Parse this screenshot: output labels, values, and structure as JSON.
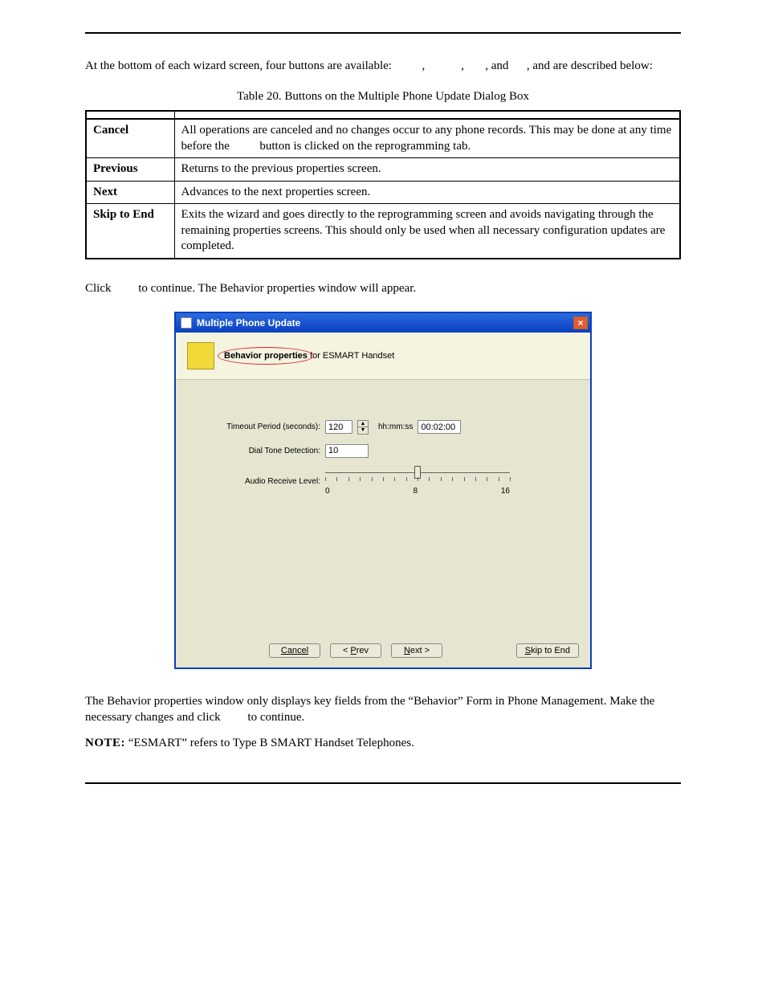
{
  "intro": {
    "p1_a": "At the bottom of each wizard screen, four buttons are available: ",
    "p1_b": ", ",
    "p1_c": ", ",
    "p1_d": ", and ",
    "p1_e": ", and are described below:"
  },
  "table_caption": "Table 20.  Buttons on the Multiple Phone Update Dialog Box",
  "table_header": {
    "btn": "",
    "desc": ""
  },
  "rows": [
    {
      "btn": "Cancel",
      "desc_a": "All operations are canceled and no changes occur to any phone records.  This may be done at any time before the ",
      "desc_b": " button is clicked on the reprogramming tab."
    },
    {
      "btn": "Previous",
      "desc": "Returns to the previous properties screen."
    },
    {
      "btn": "Next",
      "desc": "Advances to the next properties screen."
    },
    {
      "btn": "Skip to End",
      "desc": "Exits the wizard and goes directly to the reprogramming screen and avoids navigating through the remaining properties screens.  This should only be used when all necessary configuration updates are completed."
    }
  ],
  "click_line": {
    "a": "Click ",
    "b": " to continue.  The Behavior properties window will appear."
  },
  "dialog": {
    "title": "Multiple Phone Update",
    "header_bold": "Behavior properties ",
    "header_rest": "for ESMART Handset",
    "form": {
      "timeout_label": "Timeout Period (seconds):",
      "timeout_value": "120",
      "hhmmss_label": "hh:mm:ss",
      "hhmmss_value": "00:02:00",
      "dialtone_label": "Dial Tone Detection:",
      "dialtone_value": "10",
      "audio_label": "Audio Receive Level:",
      "slider": {
        "min": 0,
        "mid": 8,
        "max": 16,
        "value": 8,
        "ticks": 17,
        "track_width": 230
      }
    },
    "buttons": {
      "cancel": "Cancel",
      "prev": "< Prev",
      "next": "Next >",
      "skip": "Skip to End"
    }
  },
  "behavior_para": {
    "a": "The Behavior properties window only displays key fields from the “Behavior” Form in Phone Management.  Make the necessary changes and click ",
    "b": " to continue."
  },
  "note": {
    "label": "NOTE:",
    "text": "  “ESMART” refers to Type B SMART Handset Telephones."
  },
  "colors": {
    "page_bg": "#ffffff",
    "rule": "#000000",
    "dialog_border": "#0a3fbf",
    "titlebar_grad_top": "#2b6bdf",
    "titlebar_grad_bottom": "#0a3fbf",
    "dialog_bg": "#e5e5d0",
    "header_strip_bg": "#f5f4e0",
    "header_icon_bg": "#f2d93a",
    "red_oval": "#d22",
    "xp_btn_bg": "#ece9d8",
    "close_btn_bg": "#e35b2f"
  }
}
